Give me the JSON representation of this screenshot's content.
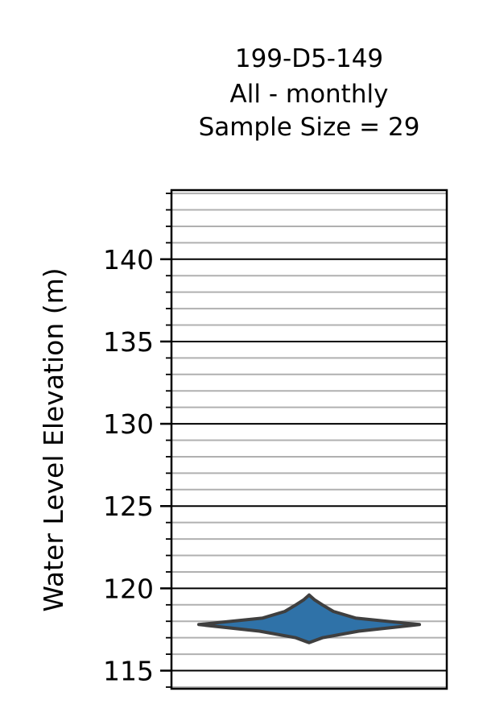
{
  "chart_data": {
    "type": "violin",
    "title_lines": [
      "199-D5-149",
      "All - monthly",
      "Sample Size = 29"
    ],
    "xlabel": "",
    "ylabel": "Water Level Elevation (m)",
    "ylim": [
      113.9,
      144.2
    ],
    "major_ticks": [
      115,
      120,
      125,
      130,
      135,
      140
    ],
    "minor_tick_step": 1,
    "grid": "major black, minor gray",
    "legend": "none",
    "series": [
      {
        "color": "#2f72a8",
        "outline_color": "#3f3f3f",
        "sample_size": 29,
        "min": 116.7,
        "max": 119.6,
        "density_profile": [
          [
            116.7,
            0.0
          ],
          [
            117.0,
            0.12
          ],
          [
            117.4,
            0.45
          ],
          [
            117.8,
            1.0
          ],
          [
            118.2,
            0.42
          ],
          [
            118.6,
            0.22
          ],
          [
            119.0,
            0.12
          ],
          [
            119.3,
            0.05
          ],
          [
            119.6,
            0.0
          ]
        ]
      }
    ]
  }
}
